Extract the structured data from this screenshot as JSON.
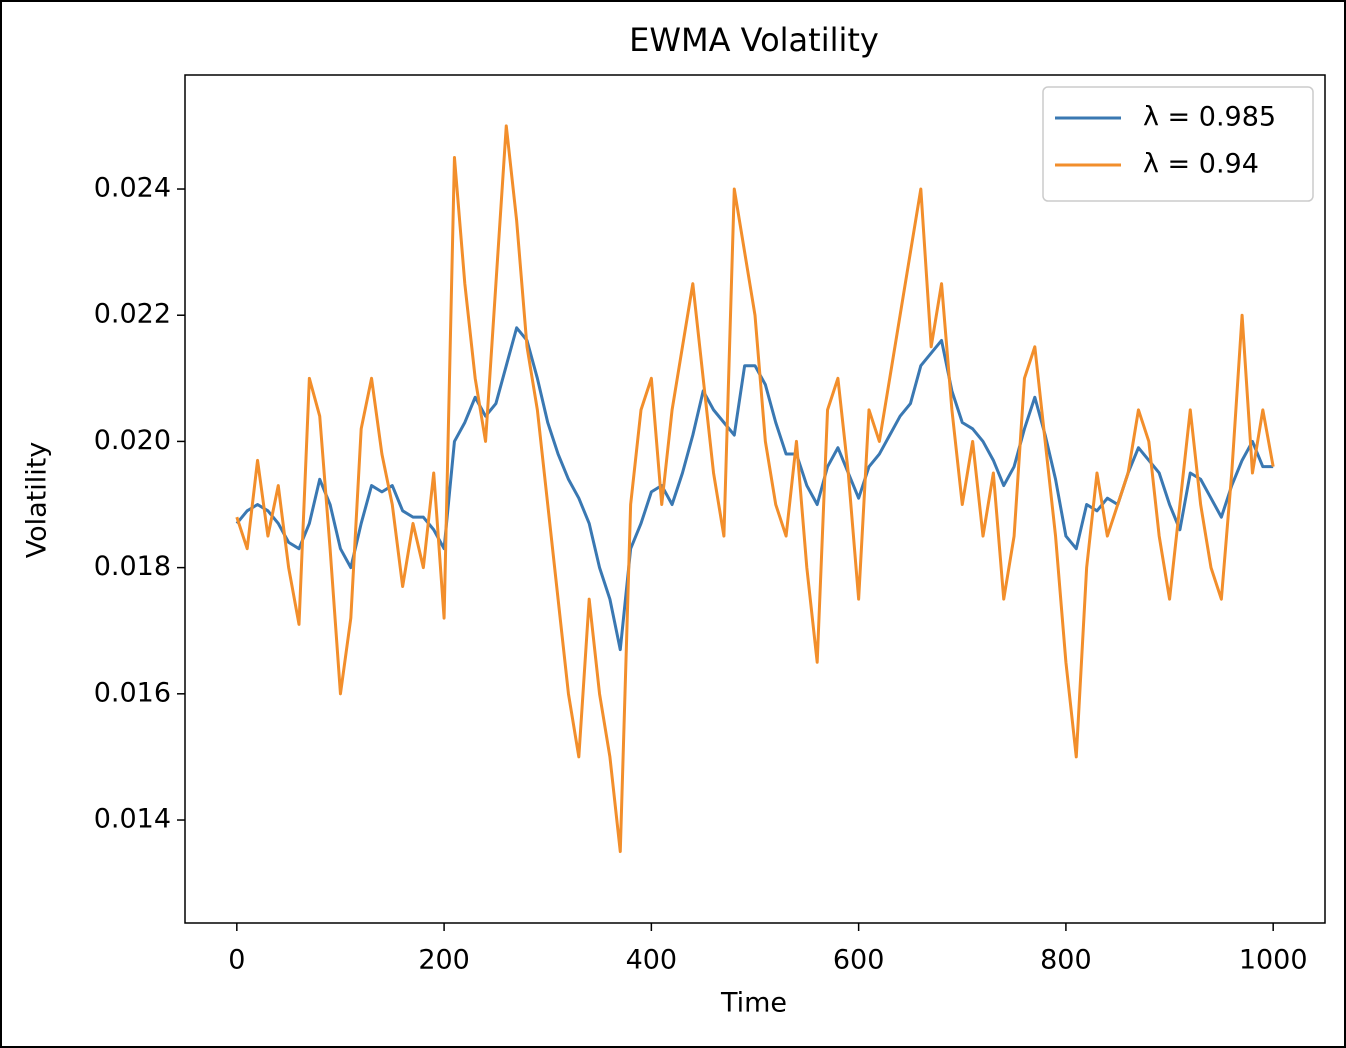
{
  "chart_data": {
    "type": "line",
    "title": "EWMA Volatility",
    "xlabel": "Time",
    "ylabel": "Volatility",
    "legend": "upper right",
    "x": [
      0,
      10,
      20,
      30,
      40,
      50,
      60,
      70,
      80,
      90,
      100,
      110,
      120,
      130,
      140,
      150,
      160,
      170,
      180,
      190,
      200,
      210,
      220,
      230,
      240,
      250,
      260,
      270,
      280,
      290,
      300,
      310,
      320,
      330,
      340,
      350,
      360,
      370,
      380,
      390,
      400,
      410,
      420,
      430,
      440,
      450,
      460,
      470,
      480,
      490,
      500,
      510,
      520,
      530,
      540,
      550,
      560,
      570,
      580,
      590,
      600,
      610,
      620,
      630,
      640,
      650,
      660,
      670,
      680,
      690,
      700,
      710,
      720,
      730,
      740,
      750,
      760,
      770,
      780,
      790,
      800,
      810,
      820,
      830,
      840,
      850,
      860,
      870,
      880,
      890,
      900,
      910,
      920,
      930,
      940,
      950,
      960,
      970,
      980,
      990,
      1000
    ],
    "series": [
      {
        "name": "λ = 0.985",
        "color": "#3a78b2",
        "values": [
          0.0187,
          0.0189,
          0.019,
          0.0189,
          0.0187,
          0.0184,
          0.0183,
          0.0187,
          0.0194,
          0.019,
          0.0183,
          0.018,
          0.0187,
          0.0193,
          0.0192,
          0.0193,
          0.0189,
          0.0188,
          0.0188,
          0.0186,
          0.0183,
          0.02,
          0.0203,
          0.0207,
          0.0204,
          0.0206,
          0.0212,
          0.0218,
          0.0216,
          0.021,
          0.0203,
          0.0198,
          0.0194,
          0.0191,
          0.0187,
          0.018,
          0.0175,
          0.0167,
          0.0183,
          0.0187,
          0.0192,
          0.0193,
          0.019,
          0.0195,
          0.0201,
          0.0208,
          0.0205,
          0.0203,
          0.0201,
          0.0212,
          0.0212,
          0.0209,
          0.0203,
          0.0198,
          0.0198,
          0.0193,
          0.019,
          0.0196,
          0.0199,
          0.0195,
          0.0191,
          0.0196,
          0.0198,
          0.0201,
          0.0204,
          0.0206,
          0.0212,
          0.0214,
          0.0216,
          0.0208,
          0.0203,
          0.0202,
          0.02,
          0.0197,
          0.0193,
          0.0196,
          0.0202,
          0.0207,
          0.0201,
          0.0194,
          0.0185,
          0.0183,
          0.019,
          0.0189,
          0.0191,
          0.019,
          0.0195,
          0.0199,
          0.0197,
          0.0195,
          0.019,
          0.0186,
          0.0195,
          0.0194,
          0.0191,
          0.0188,
          0.0193,
          0.0197,
          0.02,
          0.0196,
          0.0196
        ]
      },
      {
        "name": "λ = 0.94",
        "color": "#f28e2b",
        "values": [
          0.0188,
          0.0183,
          0.0197,
          0.0185,
          0.0193,
          0.018,
          0.0171,
          0.021,
          0.0204,
          0.0183,
          0.016,
          0.0172,
          0.0202,
          0.021,
          0.0198,
          0.019,
          0.0177,
          0.0187,
          0.018,
          0.0195,
          0.0172,
          0.0245,
          0.0225,
          0.021,
          0.02,
          0.0225,
          0.025,
          0.0235,
          0.0215,
          0.0205,
          0.019,
          0.0175,
          0.016,
          0.015,
          0.0175,
          0.016,
          0.015,
          0.0135,
          0.019,
          0.0205,
          0.021,
          0.019,
          0.0205,
          0.0215,
          0.0225,
          0.021,
          0.0195,
          0.0185,
          0.024,
          0.023,
          0.022,
          0.02,
          0.019,
          0.0185,
          0.02,
          0.018,
          0.0165,
          0.0205,
          0.021,
          0.0195,
          0.0175,
          0.0205,
          0.02,
          0.021,
          0.022,
          0.023,
          0.024,
          0.0215,
          0.0225,
          0.0205,
          0.019,
          0.02,
          0.0185,
          0.0195,
          0.0175,
          0.0185,
          0.021,
          0.0215,
          0.02,
          0.0185,
          0.0165,
          0.015,
          0.018,
          0.0195,
          0.0185,
          0.019,
          0.0195,
          0.0205,
          0.02,
          0.0185,
          0.0175,
          0.019,
          0.0205,
          0.019,
          0.018,
          0.0175,
          0.0195,
          0.022,
          0.0195,
          0.0205,
          0.0196
        ]
      }
    ],
    "xlim": [
      -50,
      1050
    ],
    "ylim": [
      0.012368,
      0.025807
    ],
    "xticks": [
      0,
      200,
      400,
      600,
      800,
      1000
    ],
    "yticks": [
      0.014,
      0.016,
      0.018,
      {
        "value": 0.02,
        "label": "0.020"
      },
      0.022,
      0.024
    ]
  }
}
